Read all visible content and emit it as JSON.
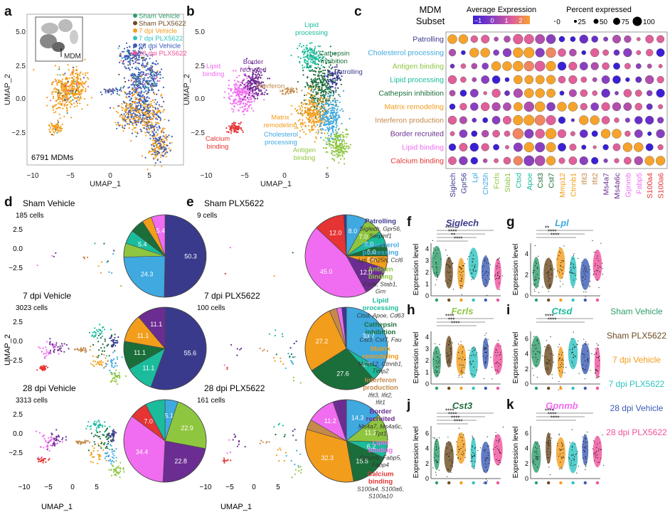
{
  "panel_letters": [
    "a",
    "b",
    "c",
    "d",
    "e",
    "f",
    "g",
    "h",
    "i",
    "j",
    "k"
  ],
  "panel_a": {
    "xlabel": "UMAP_1",
    "ylabel": "UMAP_2",
    "count_label": "6791 MDMs",
    "inset_label": "MDM",
    "xticks": [
      "−10",
      "−5",
      "0",
      "5"
    ],
    "yticks": [
      "5.0",
      "2.5",
      "0.0",
      "−2.5"
    ],
    "legend": [
      {
        "label": "Sham Vehicle",
        "color": "#2e9e6a"
      },
      {
        "label": "Sham PLX5622",
        "color": "#6b4a1e"
      },
      {
        "label": "7 dpi Vehicle",
        "color": "#f29d1b"
      },
      {
        "label": "7 dpi PLX5622",
        "color": "#2cc3c0"
      },
      {
        "label": "28 dpi Vehicle",
        "color": "#3b5bb5"
      },
      {
        "label": "28 dpi PLX5622",
        "color": "#f0509c"
      }
    ]
  },
  "panel_b": {
    "xlabel": "UMAP_1",
    "ylabel": "UMAP_2",
    "xticks": [
      "−10",
      "−5",
      "0",
      "5"
    ],
    "yticks": [
      "5.0",
      "2.5",
      "0.0",
      "−2.5"
    ],
    "clusters": [
      {
        "label": "Lipid processing",
        "color": "#1abc9c"
      },
      {
        "label": "Cathepsin inhibition",
        "color": "#1b6e3a"
      },
      {
        "label": "Patrolling",
        "color": "#3a3a8c"
      },
      {
        "label": "Border recruited",
        "color": "#6b2d91"
      },
      {
        "label": "Lipid binding",
        "color": "#f06cf0"
      },
      {
        "label": "Interferon",
        "color": "#c58a4b"
      },
      {
        "label": "Matrix remodeling",
        "color": "#f29d1b"
      },
      {
        "label": "Cholesterol processing",
        "color": "#3fa9e0"
      },
      {
        "label": "Calcium binding",
        "color": "#e63333"
      },
      {
        "label": "Antigen binding",
        "color": "#8ec63f"
      }
    ]
  },
  "panel_c": {
    "title": "MDM Subset",
    "expr_legend_title": "Average Expression",
    "expr_ticks": [
      "−1",
      "0",
      "1",
      "2"
    ],
    "pct_legend_title": "Percent expressed",
    "pct_ticks": [
      "0",
      "25",
      "50",
      "75",
      "100"
    ],
    "rows": [
      {
        "label": "Patrolling",
        "color": "#3a3a8c"
      },
      {
        "label": "Cholesterol processing",
        "color": "#3fa9e0"
      },
      {
        "label": "Antigen binding",
        "color": "#8ec63f"
      },
      {
        "label": "Lipid processing",
        "color": "#1abc9c"
      },
      {
        "label": "Cathepsin inhibition",
        "color": "#1b6e3a"
      },
      {
        "label": "Matrix remodeling",
        "color": "#f29d1b"
      },
      {
        "label": "Interferon production",
        "color": "#c58a4b"
      },
      {
        "label": "Border recruited",
        "color": "#6b2d91"
      },
      {
        "label": "Lipid binding",
        "color": "#f06cf0"
      },
      {
        "label": "Calcium binding",
        "color": "#e63333"
      }
    ],
    "genes": [
      {
        "label": "Siglech",
        "color": "#3a3a8c"
      },
      {
        "label": "Gpr56",
        "color": "#3a3a8c"
      },
      {
        "label": "Lpl",
        "color": "#3fa9e0"
      },
      {
        "label": "Ch25h",
        "color": "#3fa9e0"
      },
      {
        "label": "Fcrls",
        "color": "#8ec63f"
      },
      {
        "label": "Stab1",
        "color": "#8ec63f"
      },
      {
        "label": "Ctsd",
        "color": "#1abc9c"
      },
      {
        "label": "Apoe",
        "color": "#1abc9c"
      },
      {
        "label": "Cst3",
        "color": "#1b6e3a"
      },
      {
        "label": "Cst7",
        "color": "#1b6e3a"
      },
      {
        "label": "Mmp12",
        "color": "#f29d1b"
      },
      {
        "label": "Ctnnb1",
        "color": "#f29d1b"
      },
      {
        "label": "Ifit3",
        "color": "#c58a4b"
      },
      {
        "label": "Ifit2",
        "color": "#c58a4b"
      },
      {
        "label": "Ms4a7",
        "color": "#6b2d91"
      },
      {
        "label": "Ms4a6c",
        "color": "#6b2d91"
      },
      {
        "label": "Gpnmb",
        "color": "#f06cf0"
      },
      {
        "label": "Fabp5",
        "color": "#f06cf0"
      },
      {
        "label": "S100a4",
        "color": "#e63333"
      },
      {
        "label": "S100a6",
        "color": "#e63333"
      }
    ]
  },
  "panel_d": [
    {
      "title": "Sham Vehicle",
      "cells": "185 cells"
    },
    {
      "title": "7 dpi Vehicle",
      "cells": "3023 cells"
    },
    {
      "title": "28 dpi Vehicle",
      "cells": "3313 cells"
    }
  ],
  "panel_e": [
    {
      "title": "Sham PLX5622",
      "cells": "9 cells"
    },
    {
      "title": "7 dpi PLX5622",
      "cells": "100 cells"
    },
    {
      "title": "28 dpi PLX5622",
      "cells": "161 cells"
    }
  ],
  "scatter_axes": {
    "xlabel": "UMAP_1",
    "ylabel": "UMAP_2",
    "xticks": [
      "−10",
      "−5",
      "0",
      "5"
    ],
    "yticks": [
      "2.5",
      "0.0",
      "−2.5"
    ]
  },
  "pies": [
    {
      "slices": [
        {
          "v": 50.3,
          "c": "#3a3a8c",
          "t": "50.3"
        },
        {
          "v": 24.3,
          "c": "#3fa9e0",
          "t": "24.3"
        },
        {
          "v": 5.4,
          "c": "#8ec63f",
          "t": ""
        },
        {
          "v": 5.4,
          "c": "#1abc9c",
          "t": "5.4"
        },
        {
          "v": 5.4,
          "c": "#1b6e3a",
          "t": ""
        },
        {
          "v": 3.8,
          "c": "#f29d1b",
          "t": ""
        },
        {
          "v": 5.4,
          "c": "#f06cf0",
          "t": "5.4"
        }
      ]
    },
    {
      "slices": [
        {
          "v": 55.6,
          "c": "#3a3a8c",
          "t": "55.6"
        },
        {
          "v": 11.1,
          "c": "#1abc9c",
          "t": "11.1"
        },
        {
          "v": 11.1,
          "c": "#1b6e3a",
          "t": "11.1"
        },
        {
          "v": 11.1,
          "c": "#f29d1b",
          "t": "11.1"
        },
        {
          "v": 11.1,
          "c": "#6b2d91",
          "t": "11.1"
        }
      ]
    },
    {
      "slices": [
        {
          "v": 5.1,
          "c": "#3fa9e0",
          "t": "5.1"
        },
        {
          "v": 22.9,
          "c": "#8ec63f",
          "t": "22.9"
        },
        {
          "v": 22.8,
          "c": "#6b2d91",
          "t": "22.8"
        },
        {
          "v": 34.4,
          "c": "#f06cf0",
          "t": "34.4"
        },
        {
          "v": 7.0,
          "c": "#e63333",
          "t": "7.0"
        },
        {
          "v": 7.8,
          "c": "#1abc9c",
          "t": ""
        }
      ]
    },
    {
      "slices": [
        {
          "v": 8.0,
          "c": "#3fa9e0",
          "t": "8.0"
        },
        {
          "v": 7.0,
          "c": "#8ec63f",
          "t": "7.0"
        },
        {
          "v": 5.0,
          "c": "#1abc9c",
          "t": "5.0"
        },
        {
          "v": 5.0,
          "c": "#1b6e3a",
          "t": "5.0"
        },
        {
          "v": 5.0,
          "c": "#f29d1b",
          "t": "5.0"
        },
        {
          "v": 12.0,
          "c": "#6b2d91",
          "t": "12.0"
        },
        {
          "v": 45.0,
          "c": "#f06cf0",
          "t": "45.0"
        },
        {
          "v": 12.0,
          "c": "#e63333",
          "t": "12.0"
        },
        {
          "v": 1.0,
          "c": "#3a3a8c",
          "t": ""
        }
      ]
    },
    {
      "slices": [
        {
          "v": 33.7,
          "c": "#3fa9e0",
          "t": "33.7"
        },
        {
          "v": 4.7,
          "c": "#1abc9c",
          "t": "4.7"
        },
        {
          "v": 27.6,
          "c": "#1b6e3a",
          "t": "27.6"
        },
        {
          "v": 27.2,
          "c": "#f29d1b",
          "t": "27.2"
        },
        {
          "v": 3.0,
          "c": "#c58a4b",
          "t": ""
        },
        {
          "v": 2.0,
          "c": "#f06cf0",
          "t": ""
        },
        {
          "v": 1.8,
          "c": "#3a3a8c",
          "t": ""
        }
      ]
    },
    {
      "slices": [
        {
          "v": 14.3,
          "c": "#3fa9e0",
          "t": "14.3"
        },
        {
          "v": 11.2,
          "c": "#8ec63f",
          "t": "11.2"
        },
        {
          "v": 6.2,
          "c": "#1abc9c",
          "t": "6.2"
        },
        {
          "v": 15.5,
          "c": "#1b6e3a",
          "t": "15.5"
        },
        {
          "v": 32.3,
          "c": "#f29d1b",
          "t": "32.3"
        },
        {
          "v": 4.0,
          "c": "#c58a4b",
          "t": ""
        },
        {
          "v": 11.2,
          "c": "#f06cf0",
          "t": "11.2"
        },
        {
          "v": 5.3,
          "c": "#6b2d91",
          "t": ""
        }
      ]
    }
  ],
  "subset_key": [
    {
      "title": "Patrolling",
      "genes": "Siglech, Gpr56, Serpinf1",
      "color": "#3a3a8c"
    },
    {
      "title": "Cholesterol processing",
      "genes": "Lpl, Ch25h, Ccl6",
      "color": "#3fa9e0"
    },
    {
      "title": "Antigen binding",
      "genes": "Fcrls, Stab1, Grn",
      "color": "#8ec63f"
    },
    {
      "title": "Lipid processing",
      "genes": "Ctsd, Apoe, Cd63",
      "color": "#1abc9c"
    },
    {
      "title": "Cathepsin inhibition",
      "genes": "Cst3, Cst7, Fau",
      "color": "#1b6e3a"
    },
    {
      "title": "Matrix remodeling",
      "genes": "Mmp12, Ctnnb1, Timp2",
      "color": "#f29d1b"
    },
    {
      "title": "Interferon production",
      "genes": "Ifit3, Ifit2, Ifit1",
      "color": "#c58a4b"
    },
    {
      "title": "Border recruited",
      "genes": "Ms4a7, Ms4a6c, Tpt1",
      "color": "#6b2d91"
    },
    {
      "title": "Lipid binding",
      "genes": "Gpnmb, Fabp5, Fabp4",
      "color": "#f06cf0"
    },
    {
      "title": "Calcium binding",
      "genes": "S100a4, S100a6, S100a10",
      "color": "#e63333"
    }
  ],
  "violins": [
    {
      "letter": "f",
      "gene": "Siglech",
      "color": "#3a3a8c",
      "yticks": [
        "0",
        "1",
        "2",
        "3",
        "4"
      ],
      "ymax": 4.5,
      "sig": [
        "****",
        "****",
        "**",
        "****"
      ]
    },
    {
      "letter": "g",
      "gene": "Lpl",
      "color": "#3fa9e0",
      "yticks": [
        "0",
        "2",
        "4"
      ],
      "ymax": 5,
      "sig": [
        "**",
        "****",
        "****"
      ]
    },
    {
      "letter": "h",
      "gene": "Fcrls",
      "color": "#8ec63f",
      "yticks": [
        "0",
        "1",
        "2",
        "3",
        "4"
      ],
      "ymax": 4.5,
      "sig": [
        "****",
        "***",
        "****"
      ]
    },
    {
      "letter": "i",
      "gene": "Ctsd",
      "color": "#1abc9c",
      "yticks": [
        "0",
        "2",
        "4",
        "6"
      ],
      "ymax": 7,
      "sig": [
        "****",
        "****"
      ]
    },
    {
      "letter": "j",
      "gene": "Cst3",
      "color": "#1b6e3a",
      "yticks": [
        "0",
        "2",
        "4",
        "6"
      ],
      "ymax": 7,
      "sig": [
        "****",
        "****",
        "****",
        "****"
      ]
    },
    {
      "letter": "k",
      "gene": "Gpnmb",
      "color": "#f06cf0",
      "yticks": [
        "0",
        "2",
        "4",
        "6"
      ],
      "ymax": 7,
      "sig": [
        "****",
        "****",
        "****"
      ]
    }
  ],
  "violin_ylabel": "Expression level",
  "group_legend": [
    {
      "label": "Sham Vehicle",
      "color": "#2e9e6a"
    },
    {
      "label": "Sham PLX5622",
      "color": "#6b4a1e"
    },
    {
      "label": "7 dpi Vehicle",
      "color": "#f29d1b"
    },
    {
      "label": "7 dpi PLX5622",
      "color": "#2cc3c0"
    },
    {
      "label": "28 dpi Vehicle",
      "color": "#3b5bb5"
    },
    {
      "label": "28 dpi PLX5622",
      "color": "#f0509c"
    }
  ]
}
